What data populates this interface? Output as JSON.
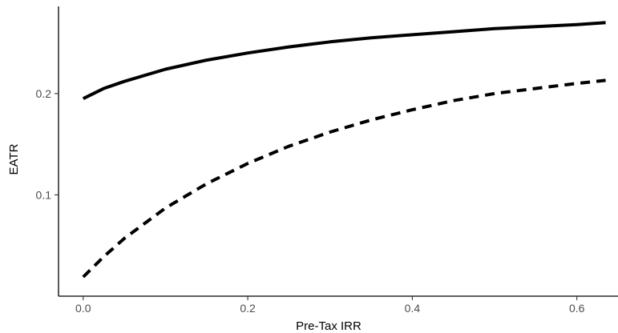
{
  "chart_data": {
    "type": "line",
    "title": "",
    "xlabel": "Pre-Tax IRR",
    "ylabel": "EATR",
    "xlim": [
      -0.03,
      0.65
    ],
    "ylim": [
      0.0,
      0.286
    ],
    "x_ticks": [
      0.0,
      0.2,
      0.4,
      0.6
    ],
    "x_tick_labels": [
      "0.0",
      "0.2",
      "0.4",
      "0.6"
    ],
    "y_ticks": [
      0.1,
      0.2
    ],
    "y_tick_labels": [
      "0.1",
      "0.2"
    ],
    "grid": false,
    "legend": "none",
    "series": [
      {
        "style": "solid",
        "color": "#000000",
        "x": [
          0.0,
          0.025,
          0.05,
          0.1,
          0.15,
          0.2,
          0.25,
          0.3,
          0.35,
          0.4,
          0.45,
          0.5,
          0.55,
          0.6,
          0.635
        ],
        "y": [
          0.195,
          0.205,
          0.212,
          0.224,
          0.233,
          0.24,
          0.246,
          0.251,
          0.255,
          0.258,
          0.261,
          0.264,
          0.266,
          0.268,
          0.27
        ]
      },
      {
        "style": "dashed",
        "color": "#000000",
        "x": [
          0.0,
          0.025,
          0.05,
          0.1,
          0.15,
          0.2,
          0.25,
          0.3,
          0.35,
          0.4,
          0.45,
          0.5,
          0.55,
          0.6,
          0.635
        ],
        "y": [
          0.019,
          0.039,
          0.057,
          0.087,
          0.111,
          0.131,
          0.148,
          0.162,
          0.174,
          0.184,
          0.193,
          0.2,
          0.205,
          0.21,
          0.213
        ]
      }
    ]
  }
}
